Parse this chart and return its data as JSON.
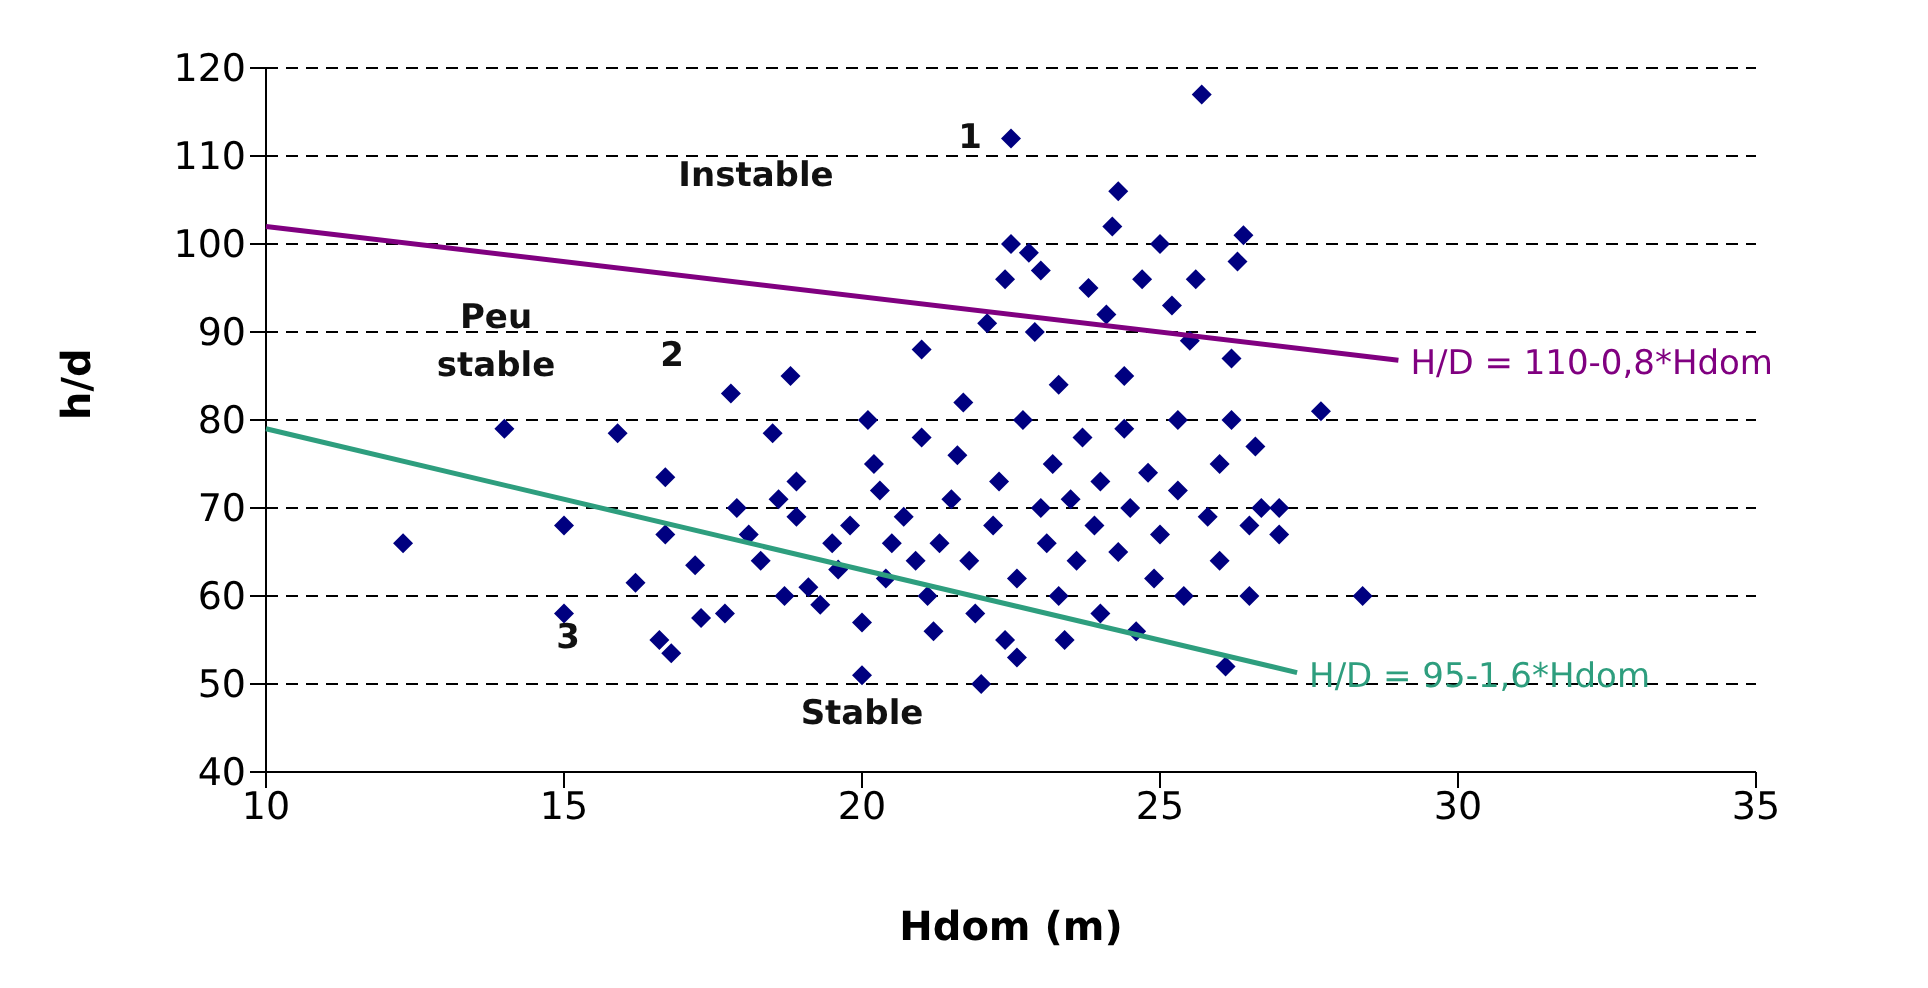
{
  "chart_data": {
    "type": "scatter",
    "xlabel": "Hdom (m)",
    "ylabel": "h/d",
    "xlim": [
      10,
      35
    ],
    "xticks": [
      10,
      15,
      20,
      25,
      30,
      35
    ],
    "ylim": [
      40,
      120
    ],
    "yticks": [
      40,
      50,
      60,
      70,
      80,
      90,
      100,
      110,
      120
    ],
    "grid": "y",
    "legend": false,
    "annotations": [
      "Instable",
      "1",
      "Peu stable",
      "2",
      "3",
      "Stable"
    ],
    "series": [
      {
        "color": "#000080",
        "marker": "diamond",
        "x": [
          12.3,
          14,
          15,
          15,
          15.9,
          16.2,
          16.7,
          16.7,
          16.6,
          16.8,
          17.2,
          17.3,
          17.7,
          17.8,
          17.9,
          18.1,
          18.3,
          18.5,
          18.8,
          18.6,
          18.9,
          18.7,
          18.9,
          19.1,
          19.3,
          19.5,
          19.6,
          19.8,
          20,
          20,
          20.1,
          20.2,
          20.3,
          20.4,
          20.5,
          20.7,
          20.9,
          21,
          21,
          21.1,
          21.2,
          21.3,
          21.5,
          21.6,
          21.7,
          21.8,
          21.9,
          22,
          22.1,
          22.2,
          22.3,
          22.4,
          22.5,
          22.5,
          22.4,
          22.6,
          22.6,
          22.7,
          22.8,
          22.9,
          23,
          23,
          23.1,
          23.2,
          23.3,
          23.3,
          23.4,
          23.5,
          23.6,
          23.7,
          23.8,
          23.9,
          24,
          24,
          24.1,
          24.2,
          24.3,
          24.3,
          24.4,
          24.4,
          24.5,
          24.6,
          24.7,
          24.8,
          24.9,
          25,
          25,
          25.2,
          25.3,
          25.3,
          25.4,
          25.5,
          25.6,
          25.7,
          25.8,
          26,
          26,
          26.1,
          26.2,
          26.2,
          26.3,
          26.4,
          26.5,
          26.5,
          26.6,
          26.7,
          27,
          27,
          27.7,
          28.4
        ],
        "values": [
          66,
          79,
          68,
          58,
          78.5,
          61.5,
          73.5,
          67,
          55,
          53.5,
          63.5,
          57.5,
          58,
          83,
          70,
          67,
          64,
          78.5,
          85,
          71,
          69,
          60,
          73,
          61,
          59,
          66,
          63,
          68,
          51,
          57,
          80,
          75,
          72,
          62,
          66,
          69,
          64,
          88,
          78,
          60,
          56,
          66,
          71,
          76,
          82,
          64,
          58,
          50,
          91,
          68,
          73,
          96,
          100,
          112,
          55,
          53,
          62,
          80,
          99,
          90,
          97,
          70,
          66,
          75,
          60,
          84,
          55,
          71,
          64,
          78,
          95,
          68,
          73,
          58,
          92,
          102,
          65,
          106,
          85,
          79,
          70,
          56,
          96,
          74,
          62,
          100,
          67,
          93,
          80,
          72,
          60,
          89,
          96,
          117,
          69,
          64,
          75,
          52,
          80,
          87,
          98,
          101,
          68,
          60,
          77,
          70,
          67,
          70,
          81,
          60
        ]
      },
      {
        "type": "line",
        "name": "H/D = 110-0,8*Hdom",
        "color": "#800080",
        "marker": "none",
        "x": [
          10,
          29
        ],
        "values": [
          102,
          86.8
        ]
      },
      {
        "type": "line",
        "name": "H/D = 95-1,6*Hdom",
        "color": "#2e9e7e",
        "marker": "none",
        "x": [
          10,
          27.3
        ],
        "values": [
          79,
          51.3
        ]
      }
    ]
  }
}
